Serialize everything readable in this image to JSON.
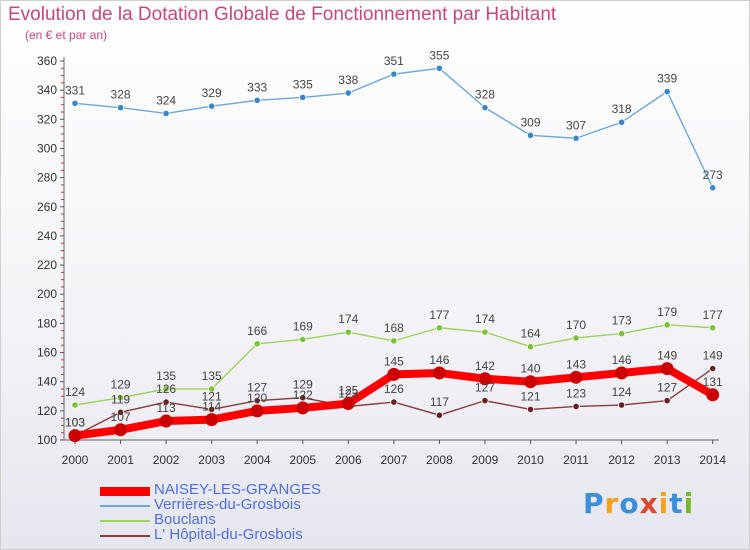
{
  "title": "Evolution de la Dotation Globale de Fonctionnement par Habitant",
  "subtitle": "(en € et par an)",
  "logo": {
    "letters": [
      {
        "ch": "P",
        "color": "#3a8fd8"
      },
      {
        "ch": "r",
        "color": "#f5a21b"
      },
      {
        "ch": "o",
        "color": "#3a8fd8"
      },
      {
        "ch": "x",
        "color": "#e2462b"
      },
      {
        "ch": "i",
        "color": "#f5a21b"
      },
      {
        "ch": "t",
        "color": "#3a8fd8"
      },
      {
        "ch": "i",
        "color": "#7bb829"
      }
    ]
  },
  "chart_data": {
    "type": "line",
    "title": "Evolution de la Dotation Globale de Fonctionnement par Habitant",
    "subtitle": "(en € et par an)",
    "x": [
      "2000",
      "2001",
      "2002",
      "2003",
      "2004",
      "2005",
      "2006",
      "2007",
      "2008",
      "2009",
      "2010",
      "2011",
      "2012",
      "2013",
      "2014"
    ],
    "ylim": [
      100,
      360
    ],
    "yticks": [
      100,
      120,
      140,
      160,
      180,
      200,
      220,
      240,
      260,
      280,
      300,
      320,
      340,
      360
    ],
    "grid": false,
    "legend_position": "bottom-left",
    "series": [
      {
        "name": "Verrières-du-Grosbois",
        "color": "#6aa8dc",
        "marker": "#3a86c8",
        "values": [
          331,
          328,
          324,
          329,
          333,
          335,
          338,
          351,
          355,
          328,
          309,
          307,
          318,
          339,
          273
        ]
      },
      {
        "name": "Bouclans",
        "color": "#9ad45a",
        "marker": "#7cc13a",
        "values": [
          124,
          129,
          135,
          135,
          166,
          169,
          174,
          168,
          177,
          174,
          164,
          170,
          173,
          179,
          177
        ]
      },
      {
        "name": "L' Hôpital-du-Grosbois",
        "color": "#8a3a3a",
        "marker": "#6a1f1f",
        "values": [
          103,
          119,
          126,
          121,
          127,
          129,
          123,
          126,
          117,
          127,
          121,
          123,
          124,
          127,
          149
        ]
      },
      {
        "name": "NAISEY-LES-GRANGES",
        "color": "#ff0000",
        "marker": "#cc0000",
        "thick": true,
        "values": [
          103,
          107,
          113,
          114,
          120,
          122,
          125,
          145,
          146,
          142,
          140,
          143,
          146,
          149,
          131
        ]
      }
    ],
    "legend_order": [
      "NAISEY-LES-GRANGES",
      "Verrières-du-Grosbois",
      "Bouclans",
      "L' Hôpital-du-Grosbois"
    ]
  }
}
